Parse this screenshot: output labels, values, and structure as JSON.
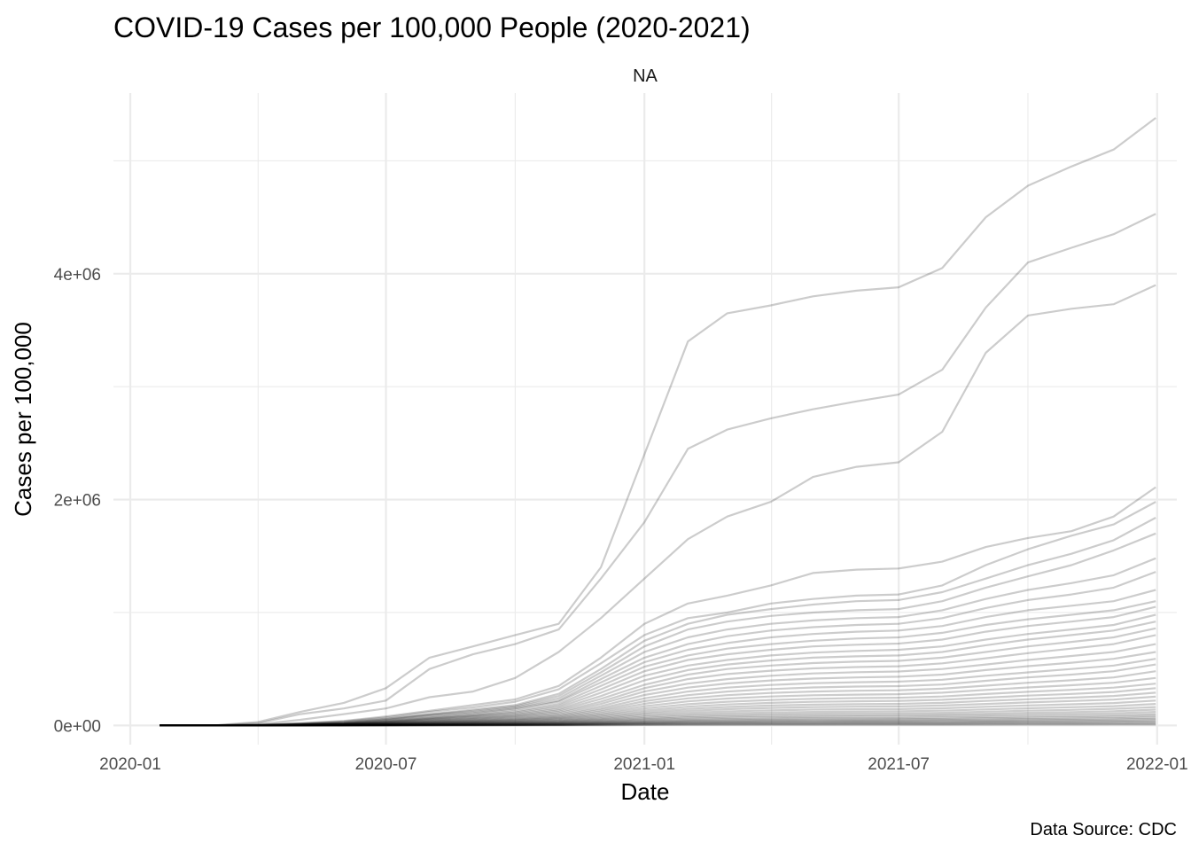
{
  "chart_data": {
    "type": "line",
    "title": "COVID-19 Cases per 100,000 People (2020-2021)",
    "facet_label": "NA",
    "xlabel": "Date",
    "ylabel": "Cases per 100,000",
    "caption": "Data Source: CDC",
    "x_ticks": [
      "2020-01",
      "2020-07",
      "2021-01",
      "2021-07",
      "2022-01"
    ],
    "y_ticks": [
      "0e+00",
      "2e+06",
      "4e+06"
    ],
    "xlim": [
      "2019-12-20",
      "2022-01-15"
    ],
    "ylim": [
      -170000,
      5600000
    ],
    "grid": true,
    "legend": "none",
    "line_color": "#000000",
    "line_alpha": 0.2,
    "x": [
      "2020-01-22",
      "2020-03-01",
      "2020-04-01",
      "2020-05-01",
      "2020-06-01",
      "2020-07-01",
      "2020-08-01",
      "2020-09-01",
      "2020-10-01",
      "2020-11-01",
      "2020-12-01",
      "2021-01-01",
      "2021-02-01",
      "2021-03-01",
      "2021-04-01",
      "2021-05-01",
      "2021-06-01",
      "2021-07-01",
      "2021-08-01",
      "2021-09-01",
      "2021-10-01",
      "2021-11-01",
      "2021-12-01",
      "2021-12-31"
    ],
    "series": [
      {
        "values": [
          0,
          0,
          30000,
          120000,
          200000,
          330000,
          600000,
          700000,
          800000,
          900000,
          1400000,
          2400000,
          3400000,
          3650000,
          3720000,
          3800000,
          3850000,
          3880000,
          4050000,
          4500000,
          4780000,
          4950000,
          5100000,
          5380000
        ]
      },
      {
        "values": [
          0,
          0,
          20000,
          100000,
          150000,
          220000,
          500000,
          630000,
          720000,
          850000,
          1300000,
          1800000,
          2450000,
          2620000,
          2720000,
          2800000,
          2870000,
          2930000,
          3150000,
          3700000,
          4100000,
          4230000,
          4350000,
          4530000
        ]
      },
      {
        "values": [
          0,
          0,
          10000,
          50000,
          100000,
          150000,
          250000,
          300000,
          420000,
          650000,
          950000,
          1300000,
          1650000,
          1850000,
          1980000,
          2200000,
          2290000,
          2330000,
          2600000,
          3300000,
          3630000,
          3690000,
          3730000,
          3900000
        ]
      },
      {
        "values": [
          0,
          0,
          5000,
          20000,
          40000,
          80000,
          130000,
          180000,
          230000,
          350000,
          600000,
          900000,
          1080000,
          1150000,
          1240000,
          1350000,
          1380000,
          1390000,
          1450000,
          1580000,
          1660000,
          1720000,
          1850000,
          2110000
        ]
      },
      {
        "values": [
          0,
          0,
          5000,
          18000,
          35000,
          70000,
          120000,
          160000,
          210000,
          320000,
          550000,
          800000,
          950000,
          1000000,
          1080000,
          1120000,
          1150000,
          1160000,
          1240000,
          1420000,
          1560000,
          1680000,
          1780000,
          1980000
        ]
      },
      {
        "values": [
          0,
          0,
          3000,
          15000,
          30000,
          60000,
          100000,
          140000,
          180000,
          280000,
          500000,
          750000,
          900000,
          980000,
          1030000,
          1070000,
          1100000,
          1110000,
          1180000,
          1300000,
          1420000,
          1520000,
          1640000,
          1840000
        ]
      },
      {
        "values": [
          0,
          0,
          3000,
          12000,
          25000,
          55000,
          95000,
          130000,
          170000,
          260000,
          470000,
          700000,
          850000,
          920000,
          970000,
          1000000,
          1020000,
          1030000,
          1100000,
          1220000,
          1320000,
          1420000,
          1550000,
          1700000
        ]
      },
      {
        "values": [
          0,
          0,
          2000,
          10000,
          22000,
          50000,
          90000,
          120000,
          160000,
          240000,
          440000,
          650000,
          780000,
          850000,
          900000,
          930000,
          950000,
          960000,
          1020000,
          1120000,
          1200000,
          1260000,
          1330000,
          1480000
        ]
      },
      {
        "values": [
          0,
          0,
          2000,
          9000,
          20000,
          45000,
          80000,
          110000,
          150000,
          220000,
          410000,
          600000,
          720000,
          790000,
          840000,
          870000,
          890000,
          900000,
          950000,
          1040000,
          1110000,
          1160000,
          1220000,
          1360000
        ]
      },
      {
        "values": [
          0,
          0,
          1500,
          8000,
          18000,
          40000,
          70000,
          100000,
          140000,
          210000,
          380000,
          560000,
          670000,
          730000,
          780000,
          810000,
          830000,
          840000,
          880000,
          960000,
          1020000,
          1060000,
          1100000,
          1200000
        ]
      },
      {
        "values": [
          0,
          0,
          1500,
          7000,
          16000,
          36000,
          65000,
          90000,
          125000,
          190000,
          350000,
          520000,
          620000,
          680000,
          720000,
          750000,
          770000,
          780000,
          820000,
          890000,
          940000,
          980000,
          1020000,
          1100000
        ]
      },
      {
        "values": [
          0,
          0,
          1000,
          6000,
          14000,
          32000,
          60000,
          85000,
          115000,
          175000,
          320000,
          480000,
          580000,
          630000,
          670000,
          700000,
          715000,
          725000,
          760000,
          830000,
          880000,
          920000,
          960000,
          1050000
        ]
      },
      {
        "values": [
          0,
          0,
          1000,
          5500,
          13000,
          30000,
          55000,
          78000,
          105000,
          160000,
          290000,
          440000,
          530000,
          580000,
          620000,
          645000,
          660000,
          670000,
          700000,
          760000,
          810000,
          850000,
          890000,
          980000
        ]
      },
      {
        "values": [
          0,
          0,
          1000,
          5000,
          12000,
          27000,
          50000,
          70000,
          95000,
          145000,
          260000,
          400000,
          490000,
          540000,
          575000,
          600000,
          612000,
          620000,
          650000,
          710000,
          760000,
          800000,
          840000,
          920000
        ]
      },
      {
        "values": [
          0,
          0,
          800,
          4500,
          11000,
          24000,
          45000,
          64000,
          87000,
          132000,
          235000,
          360000,
          450000,
          500000,
          530000,
          552000,
          565000,
          572000,
          600000,
          650000,
          700000,
          740000,
          780000,
          860000
        ]
      },
      {
        "values": [
          0,
          0,
          800,
          4000,
          10000,
          22000,
          40000,
          58000,
          80000,
          120000,
          210000,
          330000,
          410000,
          455000,
          485000,
          505000,
          517000,
          524000,
          550000,
          595000,
          640000,
          680000,
          720000,
          800000
        ]
      },
      {
        "values": [
          0,
          0,
          600,
          3500,
          9000,
          20000,
          36000,
          52000,
          72000,
          108000,
          190000,
          300000,
          370000,
          410000,
          440000,
          460000,
          471000,
          478000,
          500000,
          540000,
          580000,
          615000,
          650000,
          720000
        ]
      },
      {
        "values": [
          0,
          0,
          600,
          3000,
          8000,
          18000,
          32000,
          46000,
          64000,
          96000,
          170000,
          270000,
          335000,
          372000,
          398000,
          415000,
          425000,
          431000,
          450000,
          490000,
          525000,
          555000,
          590000,
          650000
        ]
      },
      {
        "values": [
          0,
          0,
          500,
          2800,
          7000,
          16000,
          29000,
          41000,
          57000,
          86000,
          152000,
          240000,
          300000,
          335000,
          358000,
          374000,
          383000,
          388000,
          405000,
          440000,
          470000,
          500000,
          530000,
          590000
        ]
      },
      {
        "values": [
          0,
          0,
          500,
          2500,
          6000,
          14000,
          26000,
          37000,
          51000,
          77000,
          136000,
          215000,
          268000,
          300000,
          322000,
          336000,
          344000,
          348000,
          362000,
          395000,
          425000,
          450000,
          480000,
          540000
        ]
      },
      {
        "values": [
          0,
          0,
          400,
          2200,
          5500,
          12500,
          23000,
          33000,
          46000,
          69000,
          122000,
          192000,
          240000,
          268000,
          288000,
          300000,
          307000,
          311000,
          325000,
          352000,
          378000,
          400000,
          425000,
          480000
        ]
      },
      {
        "values": [
          0,
          0,
          400,
          2000,
          5000,
          11000,
          20000,
          29000,
          41000,
          62000,
          108000,
          170000,
          213000,
          238000,
          256000,
          267000,
          273000,
          277000,
          290000,
          314000,
          336000,
          356000,
          378000,
          420000
        ]
      },
      {
        "values": [
          0,
          0,
          300,
          1800,
          4500,
          10000,
          18000,
          26000,
          36000,
          55000,
          96000,
          150000,
          188000,
          210000,
          226000,
          236000,
          242000,
          245000,
          256000,
          278000,
          298000,
          315000,
          335000,
          370000
        ]
      },
      {
        "values": [
          0,
          0,
          300,
          1600,
          4000,
          9000,
          16000,
          23000,
          32000,
          48000,
          85000,
          132000,
          166000,
          186000,
          200000,
          209000,
          214000,
          217000,
          227000,
          246000,
          264000,
          279000,
          296000,
          330000
        ]
      },
      {
        "values": [
          0,
          0,
          250,
          1400,
          3500,
          8000,
          14000,
          20000,
          28000,
          42000,
          74000,
          116000,
          146000,
          164000,
          176000,
          184000,
          188000,
          191000,
          200000,
          217000,
          232000,
          246000,
          261000,
          290000
        ]
      },
      {
        "values": [
          0,
          0,
          250,
          1200,
          3000,
          7000,
          12500,
          18000,
          25000,
          37000,
          65000,
          102000,
          128000,
          144000,
          155000,
          162000,
          166000,
          168000,
          176000,
          190000,
          204000,
          216000,
          229000,
          255000
        ]
      },
      {
        "values": [
          0,
          0,
          200,
          1000,
          2600,
          6000,
          11000,
          15500,
          21500,
          32000,
          56000,
          88000,
          111000,
          124000,
          134000,
          140000,
          143000,
          145000,
          152000,
          165000,
          177000,
          187000,
          198000,
          220000
        ]
      },
      {
        "values": [
          0,
          0,
          200,
          900,
          2200,
          5200,
          9500,
          13500,
          18500,
          28000,
          49000,
          76000,
          96000,
          107000,
          115000,
          120000,
          123000,
          125000,
          131000,
          142000,
          152000,
          161000,
          171000,
          190000
        ]
      },
      {
        "values": [
          0,
          0,
          150,
          800,
          1900,
          4500,
          8000,
          11500,
          16000,
          24000,
          42000,
          65000,
          82000,
          92000,
          99000,
          103000,
          106000,
          107000,
          112000,
          122000,
          131000,
          138000,
          147000,
          163000
        ]
      },
      {
        "values": [
          0,
          0,
          150,
          700,
          1600,
          3800,
          7000,
          10000,
          13500,
          20500,
          36000,
          56000,
          70000,
          79000,
          85000,
          88000,
          90000,
          92000,
          96000,
          104000,
          112000,
          118000,
          126000,
          140000
        ]
      },
      {
        "values": [
          0,
          0,
          100,
          600,
          1400,
          3200,
          6000,
          8500,
          11500,
          17500,
          30000,
          47000,
          60000,
          67000,
          72000,
          75000,
          77000,
          78000,
          82000,
          89000,
          95000,
          101000,
          107000,
          120000
        ]
      },
      {
        "values": [
          0,
          0,
          100,
          500,
          1200,
          2700,
          5000,
          7200,
          9800,
          14800,
          26000,
          40000,
          50000,
          56000,
          60000,
          63000,
          64000,
          65000,
          68000,
          74000,
          80000,
          84000,
          90000,
          100000
        ]
      },
      {
        "values": [
          0,
          0,
          80,
          400,
          1000,
          2300,
          4200,
          6000,
          8200,
          12400,
          21500,
          33000,
          42000,
          47000,
          51000,
          53000,
          54000,
          55000,
          58000,
          63000,
          67000,
          71000,
          76000,
          85000
        ]
      },
      {
        "values": [
          0,
          0,
          60,
          350,
          850,
          1900,
          3500,
          5000,
          6800,
          10300,
          18000,
          28000,
          35000,
          39000,
          42000,
          44000,
          45000,
          46000,
          48000,
          52000,
          56000,
          59000,
          63000,
          70000
        ]
      },
      {
        "values": [
          0,
          0,
          50,
          280,
          700,
          1600,
          2900,
          4100,
          5600,
          8500,
          15000,
          23000,
          29000,
          32000,
          35000,
          36000,
          37000,
          38000,
          40000,
          43000,
          46000,
          49000,
          52000,
          58000
        ]
      },
      {
        "values": [
          0,
          0,
          40,
          220,
          550,
          1300,
          2300,
          3300,
          4500,
          6800,
          12000,
          18500,
          23000,
          26000,
          28000,
          29000,
          30000,
          30500,
          32000,
          34500,
          37000,
          39000,
          42000,
          46000
        ]
      },
      {
        "values": [
          0,
          0,
          30,
          170,
          420,
          1000,
          1800,
          2600,
          3500,
          5300,
          9300,
          14400,
          18000,
          20000,
          21700,
          22600,
          23200,
          23600,
          24700,
          26800,
          28700,
          30400,
          32300,
          36000
        ]
      },
      {
        "values": [
          0,
          0,
          20,
          120,
          300,
          700,
          1300,
          1800,
          2500,
          3800,
          6600,
          10300,
          12900,
          14400,
          15500,
          16100,
          16500,
          16800,
          17600,
          19100,
          20500,
          21700,
          23000,
          25000
        ]
      },
      {
        "values": [
          0,
          0,
          10,
          80,
          200,
          450,
          800,
          1100,
          1550,
          2350,
          4100,
          6400,
          8000,
          8900,
          9600,
          10000,
          10200,
          10400,
          10900,
          11800,
          12700,
          13400,
          14200,
          15500
        ]
      },
      {
        "values": [
          0,
          0,
          5,
          40,
          100,
          220,
          400,
          560,
          780,
          1180,
          2050,
          3200,
          4000,
          4450,
          4800,
          5000,
          5100,
          5200,
          5450,
          5900,
          6350,
          6700,
          7100,
          7800
        ]
      }
    ]
  }
}
